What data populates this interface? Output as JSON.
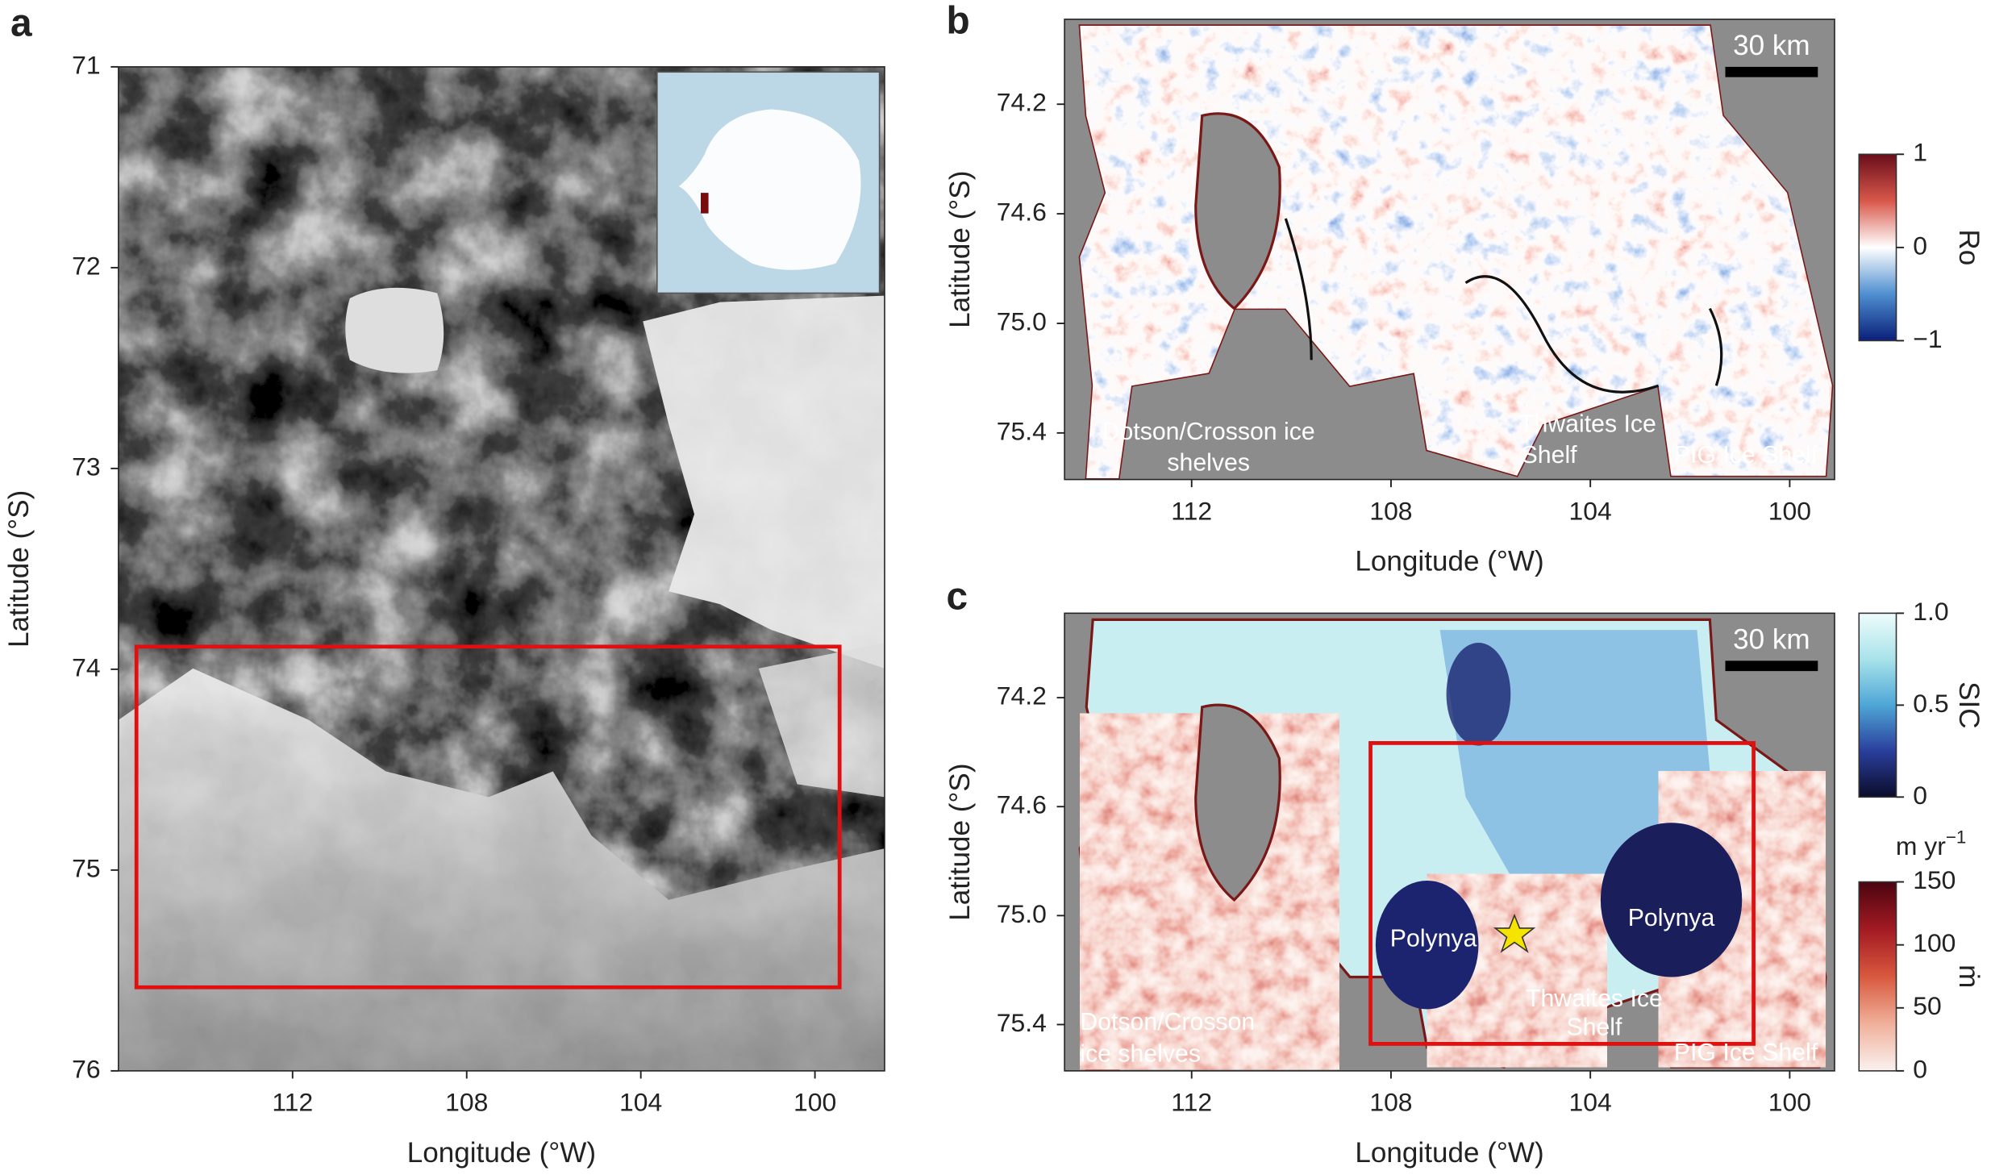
{
  "panels": [
    {
      "label": "a",
      "x_label": "Longitude (°W)",
      "y_label": "Latitude (°S)",
      "xlim": [
        116,
        98.4
      ],
      "ylim": [
        71,
        76
      ],
      "xticks": [
        112,
        108,
        104,
        100
      ],
      "yticks": [
        71,
        72,
        73,
        74,
        75,
        76
      ]
    },
    {
      "label": "b",
      "x_label": "Longitude (°W)",
      "y_label": "Latitude (°S)",
      "xlim": [
        114.55,
        99.1
      ],
      "ylim": [
        73.89,
        75.57
      ],
      "xticks": [
        112,
        108,
        104,
        100
      ],
      "yticks": [
        74.2,
        74.6,
        {
          "value": 75,
          "label": "75.0"
        },
        75.4
      ],
      "scale_bar": "30 km",
      "annotations": [
        {
          "lines": [
            "Dotson/Crosson ice",
            "shelves"
          ]
        },
        {
          "lines": [
            "Thwaites Ice",
            "Shelf"
          ]
        },
        {
          "lines": [
            "PIG Ice Shelf"
          ]
        }
      ],
      "colorbars": [
        {
          "label": "Ro",
          "lim": [
            -1,
            1
          ],
          "colors": [
            "#0a1f7a",
            "#4f8fd0",
            "#ffffff",
            "#d8584a",
            "#6a0d1a"
          ],
          "ticks": [
            1,
            0,
            {
              "value": -1,
              "label": "−1"
            }
          ]
        }
      ]
    },
    {
      "label": "c",
      "x_label": "Longitude (°W)",
      "y_label": "Latitude (°S)",
      "xlim": [
        114.55,
        99.1
      ],
      "ylim": [
        73.89,
        75.57
      ],
      "xticks": [
        112,
        108,
        104,
        100
      ],
      "yticks": [
        74.2,
        74.6,
        {
          "value": 75,
          "label": "75.0"
        },
        75.4
      ],
      "scale_bar": "30 km",
      "annotations": [
        {
          "lines": [
            "Dotson/Crosson",
            "ice shelves"
          ]
        },
        {
          "lines": [
            "Thwaites Ice",
            "Shelf"
          ]
        },
        {
          "lines": [
            "PIG Ice Shelf"
          ]
        },
        {
          "lines": [
            "Polynya"
          ]
        },
        {
          "lines": [
            "Polynya"
          ]
        }
      ],
      "colorbars": [
        {
          "label": "SIC",
          "lim": [
            0,
            1
          ],
          "colors": [
            "#0b0c2a",
            "#2a3f9c",
            "#4ea6d6",
            "#a8e3ea",
            "#eefcfc"
          ],
          "ticks": [
            {
              "value": 1,
              "label": "1.0"
            },
            0.5,
            0
          ]
        },
        {
          "label": "ṁ",
          "units": {
            "text": "m yr",
            "superscript": "−1"
          },
          "lim": [
            0,
            150
          ],
          "colors": [
            "#fbf1ef",
            "#f0b09a",
            "#d8583e",
            "#a31a22",
            "#4a0510"
          ],
          "ticks": [
            150,
            100,
            50,
            0
          ]
        }
      ]
    }
  ]
}
